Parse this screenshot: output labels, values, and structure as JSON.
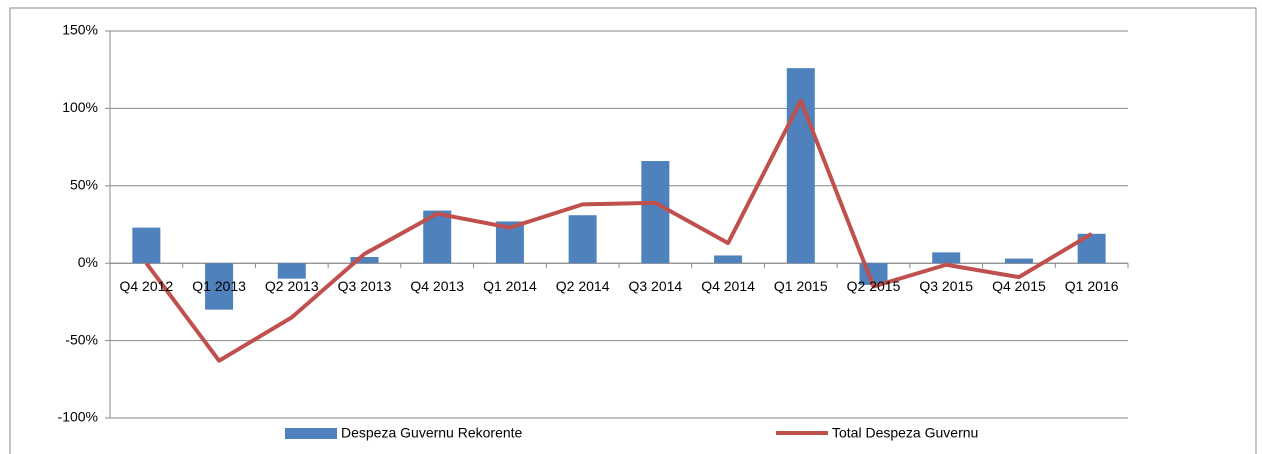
{
  "chart_data": {
    "type": "bar_line",
    "categories": [
      "Q4 2012",
      "Q1 2013",
      "Q2 2013",
      "Q3 2013",
      "Q4 2013",
      "Q1 2014",
      "Q2 2014",
      "Q3 2014",
      "Q4 2014",
      "Q1 2015",
      "Q2 2015",
      "Q3 2015",
      "Q4 2015",
      "Q1 2016"
    ],
    "series": [
      {
        "name": "Despeza Guvernu Rekorente",
        "type": "bar",
        "color": "#4f81bd",
        "values": [
          23,
          -30,
          -10,
          4,
          34,
          27,
          31,
          66,
          5,
          126,
          -14,
          7,
          3,
          19
        ]
      },
      {
        "name": "Total Despeza Guvernu",
        "type": "line",
        "color": "#c0504d",
        "values": [
          0,
          -63,
          -35,
          6,
          32,
          23,
          38,
          39,
          13,
          105,
          -15,
          -1,
          -9,
          19
        ]
      }
    ],
    "ylim": [
      -100,
      150
    ],
    "yticks": [
      {
        "value": -100,
        "label": "-100%"
      },
      {
        "value": -50,
        "label": "-50%"
      },
      {
        "value": 0,
        "label": "0%"
      },
      {
        "value": 50,
        "label": "50%"
      },
      {
        "value": 100,
        "label": "100%"
      },
      {
        "value": 150,
        "label": "150%"
      }
    ],
    "grid": true,
    "legend": "bottom"
  }
}
